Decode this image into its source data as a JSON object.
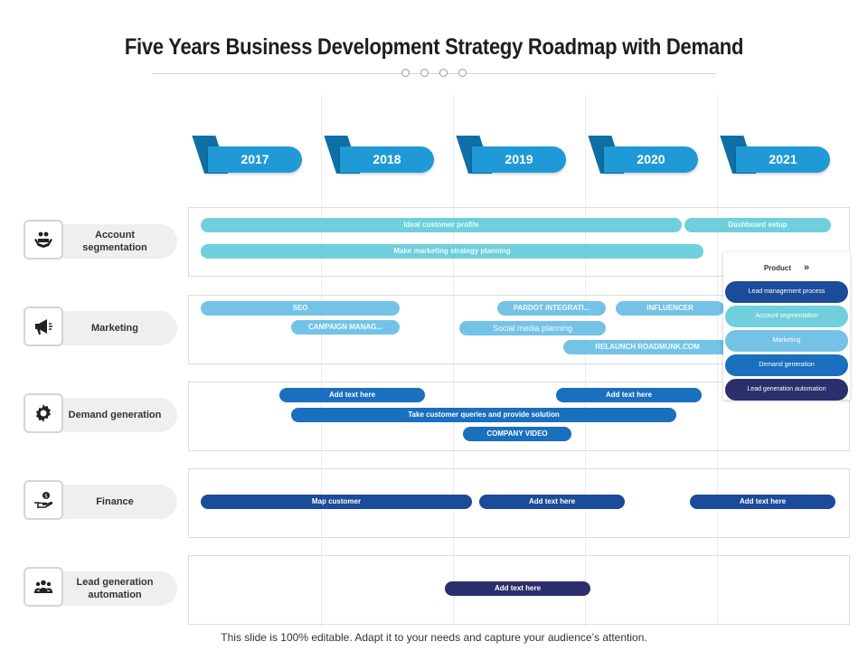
{
  "title": "Five Years Business Development Strategy Roadmap with Demand",
  "years": [
    "2017",
    "2018",
    "2019",
    "2020",
    "2021"
  ],
  "rows": {
    "account": "Account segmentation",
    "marketing": "Marketing",
    "demand": "Demand generation",
    "finance": "Finance",
    "lead": "Lead generation automation"
  },
  "bars": {
    "ideal_customer_profile": "Ideal customer profile",
    "dashboard_setup": "Dashboard setup",
    "make_marketing_strategy": "Make marketing strategy planning",
    "seo": "SEO",
    "pardot": "PARDOT INTEGRATI...",
    "influencer": "INFLUENCER",
    "campaign": "CAMPAIGN MANAG...",
    "social_media": "Social media planning",
    "relaunch": "RELAUNCH ROADMUNK.COM",
    "demand_add_1": "Add text here",
    "demand_add_2": "Add text here",
    "take_customer_queries": "Take customer queries and provide solution",
    "company_video": "COMPANY VIDEO",
    "map_customer": "Map customer",
    "finance_add_1": "Add text here",
    "finance_add_2": "Add text here",
    "lead_add": "Add text here"
  },
  "product_panel": {
    "header": "Product",
    "chevron": "»",
    "items": [
      "Lead management process",
      "Account segmentation",
      "Marketing",
      "Demand generation",
      "Lead generation automation"
    ]
  },
  "colors": {
    "year_blue": "#1f9ad6",
    "teal": "#6fcfdc",
    "sky": "#74c3e6",
    "blue": "#1a6fbe",
    "navy": "#1c4b9a",
    "indigo": "#2b2f6b"
  },
  "icons": {
    "account": "hands-people-icon",
    "marketing": "megaphone-icon",
    "demand": "gear-icon",
    "finance": "hand-coin-icon",
    "lead": "group-icon"
  },
  "footer": "This slide is 100% editable. Adapt it to your needs and capture your audience’s attention."
}
